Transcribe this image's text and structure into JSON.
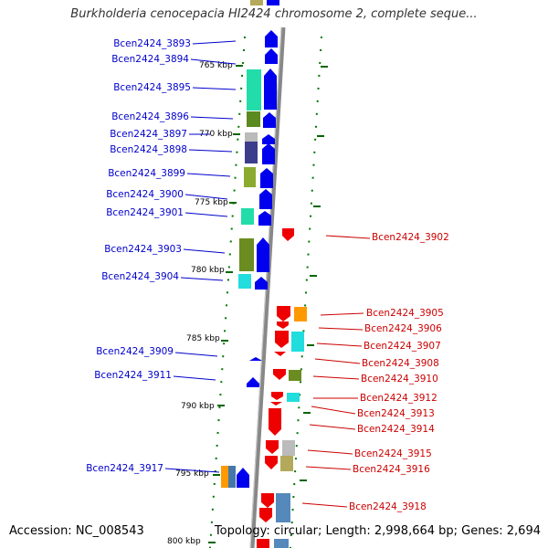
{
  "title": "Burkholderia cenocepacia HI2424 chromosome 2, complete seque...",
  "accession": "Accession: NC_008543",
  "topology": "Topology: circular; Length: 2,998,664 bp; Genes: 2,694",
  "ticks": [
    "765 kbp",
    "770 kbp",
    "775 kbp",
    "780 kbp",
    "785 kbp",
    "790 kbp",
    "795 kbp",
    "800 kbp"
  ],
  "genes_left": [
    "Bcen2424_3893",
    "Bcen2424_3894",
    "Bcen2424_3895",
    "Bcen2424_3896",
    "Bcen2424_3897",
    "Bcen2424_3898",
    "Bcen2424_3899",
    "Bcen2424_3900",
    "Bcen2424_3901",
    "Bcen2424_3903",
    "Bcen2424_3904",
    "Bcen2424_3909",
    "Bcen2424_3911",
    "Bcen2424_3917"
  ],
  "genes_right": [
    "Bcen2424_3902",
    "Bcen2424_3905",
    "Bcen2424_3906",
    "Bcen2424_3907",
    "Bcen2424_3908",
    "Bcen2424_3910",
    "Bcen2424_3912",
    "Bcen2424_3913",
    "Bcen2424_3914",
    "Bcen2424_3915",
    "Bcen2424_3916",
    "Bcen2424_3918"
  ],
  "colors": {
    "forward": "#0000ee",
    "reverse": "#ee0000",
    "backbone": "#888888",
    "tick": "#006600",
    "left_label": "#0000cc",
    "right_label": "#cc0000"
  }
}
